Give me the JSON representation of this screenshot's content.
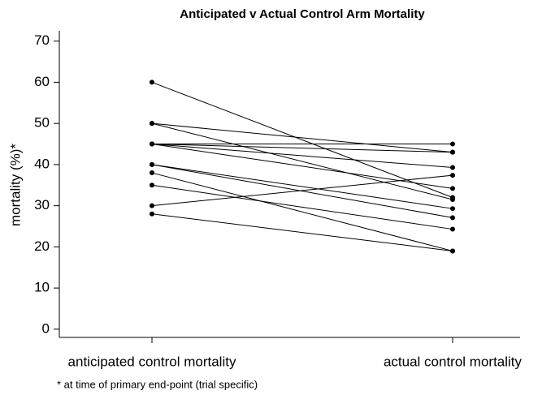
{
  "chart_data": {
    "type": "slope",
    "title": "Anticipated v Actual Control Arm Mortality",
    "y_label": "mortality (%)*",
    "footnote": "* at time of primary end-point (trial specific)",
    "categories": [
      "anticipated control mortality",
      "actual control mortality"
    ],
    "ylim": [
      -2,
      72.5
    ],
    "yticks": [
      0,
      10,
      20,
      30,
      40,
      50,
      60,
      70
    ],
    "series": [
      {
        "color": "#000000",
        "values": [
          60,
          32
        ]
      },
      {
        "color": "#000000",
        "values": [
          50,
          43
        ]
      },
      {
        "color": "#000000",
        "values": [
          50,
          31.5
        ]
      },
      {
        "color": "#000000",
        "values": [
          45,
          45
        ]
      },
      {
        "color": "#000000",
        "values": [
          45,
          43
        ]
      },
      {
        "color": "#000000",
        "values": [
          45,
          39.3
        ]
      },
      {
        "color": "#000000",
        "values": [
          45,
          34.2
        ]
      },
      {
        "color": "#000000",
        "values": [
          40,
          29.3
        ]
      },
      {
        "color": "#000000",
        "values": [
          40,
          27.1
        ]
      },
      {
        "color": "#000000",
        "values": [
          38,
          19
        ]
      },
      {
        "color": "#000000",
        "values": [
          35,
          24.3
        ]
      },
      {
        "color": "#000000",
        "values": [
          30,
          37.4
        ]
      },
      {
        "color": "#000000",
        "values": [
          28,
          19
        ]
      }
    ]
  }
}
